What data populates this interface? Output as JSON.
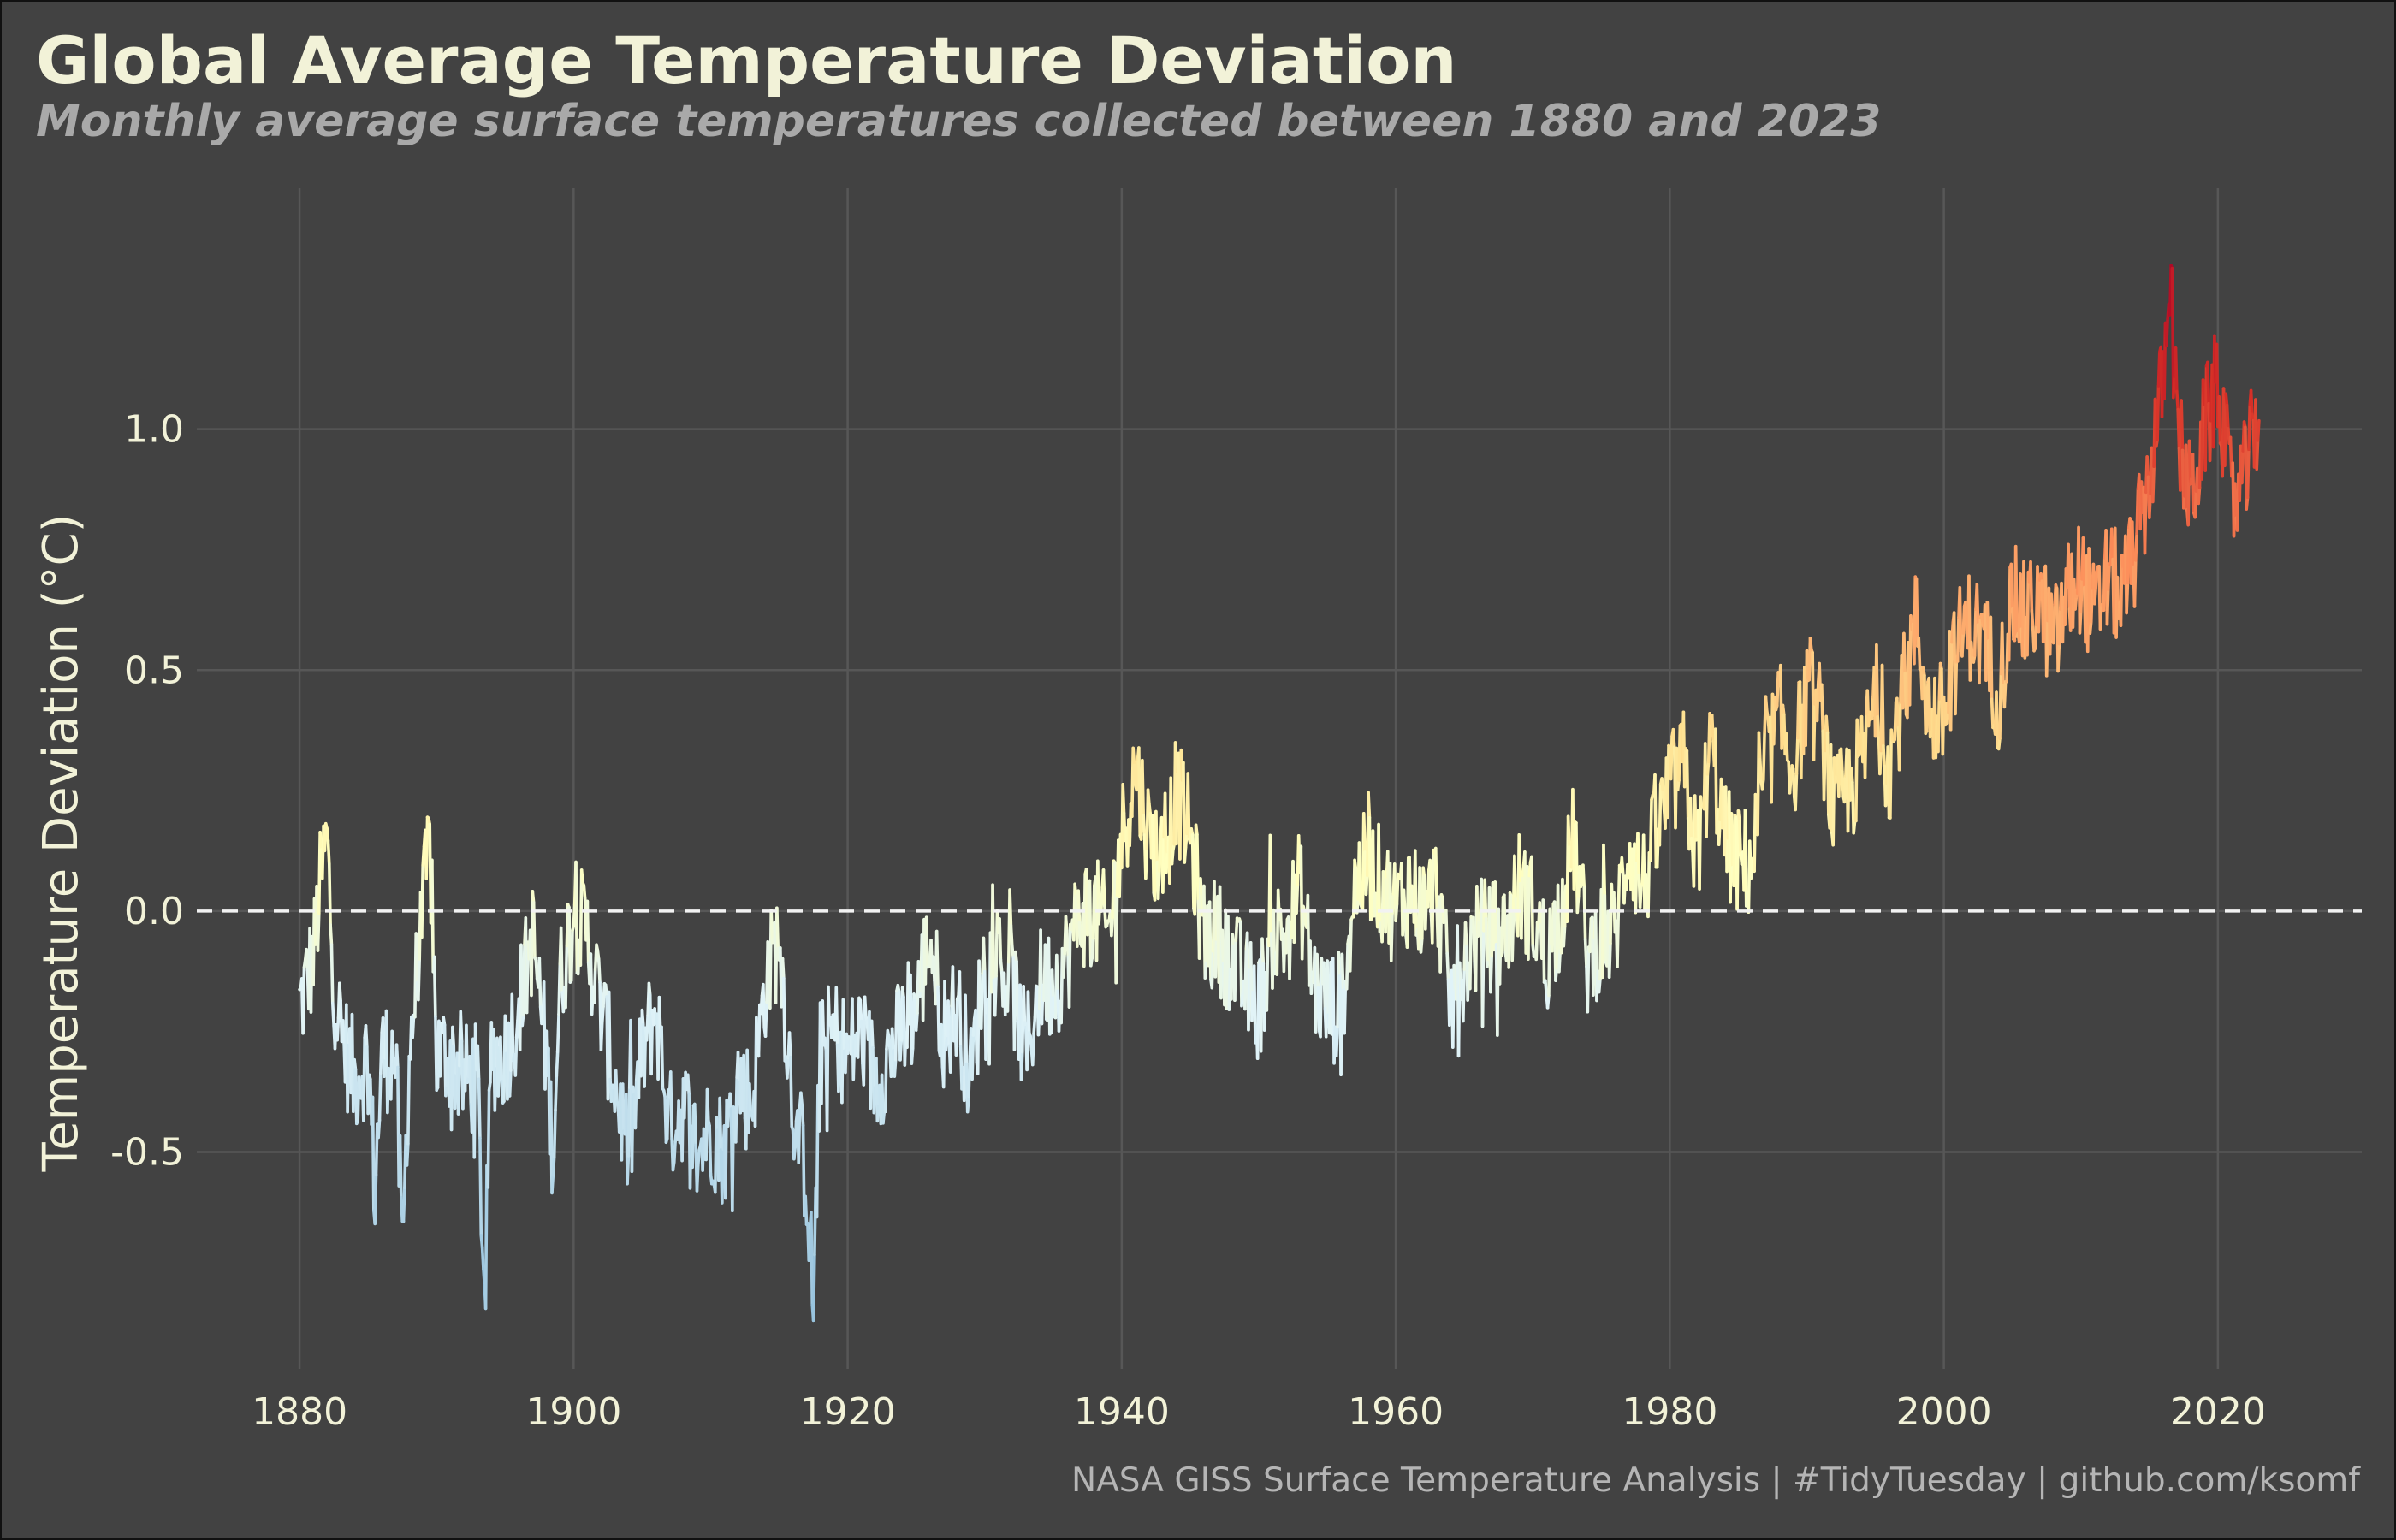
{
  "chart_data": {
    "type": "line",
    "title": "Global Average Temperature Deviation",
    "subtitle": "Monthly average surface temperatures collected between 1880 and 2023",
    "ylabel": "Temperature Deviation (°C)",
    "xlabel": "",
    "caption": "NASA GISS Surface Temperature Analysis | #TidyTuesday | github.com/ksomf",
    "xlim": [
      1872.5,
      2030.5
    ],
    "ylim": [
      -0.95,
      1.5
    ],
    "x_ticks": [
      1880,
      1900,
      1920,
      1940,
      1960,
      1980,
      2000,
      2020
    ],
    "x_tick_labels": [
      "1880",
      "1900",
      "1920",
      "1940",
      "1960",
      "1980",
      "2000",
      "2020"
    ],
    "y_ticks": [
      -0.5,
      0.0,
      0.5,
      1.0
    ],
    "y_tick_labels": [
      "-0.5",
      "0.0",
      "0.5",
      "1.0"
    ],
    "grid": true,
    "reference_line": {
      "y": 0.0,
      "style": "dashed",
      "color": "#f2f2f2"
    },
    "color_scale": {
      "low": "#91bfdb",
      "mid_low": "#e0f3f8",
      "mid": "#ffffbf",
      "mid_high": "#fee090",
      "high_mid": "#fc8d59",
      "high": "#d73027",
      "top": "#a50026"
    },
    "series": [
      {
        "x": [
          1880.0,
          1881.0,
          1881.5,
          1882.0,
          1882.5,
          1883.0,
          1884.0,
          1885.0,
          1885.5,
          1886.0,
          1887.0,
          1887.5,
          1888.0,
          1889.0,
          1889.5,
          1890.0,
          1891.0,
          1892.0,
          1893.0,
          1893.5,
          1894.0,
          1895.0,
          1896.0,
          1897.0,
          1898.0,
          1898.5,
          1899.0,
          1900.0,
          1901.0,
          1902.0,
          1903.0,
          1904.0,
          1905.0,
          1906.0,
          1907.0,
          1908.0,
          1909.0,
          1910.0,
          1911.0,
          1912.0,
          1913.0,
          1914.0,
          1915.0,
          1916.0,
          1917.0,
          1917.5,
          1918.0,
          1919.0,
          1920.0,
          1921.0,
          1922.0,
          1923.0,
          1924.0,
          1925.0,
          1926.0,
          1927.0,
          1928.0,
          1929.0,
          1930.0,
          1931.0,
          1932.0,
          1933.0,
          1934.0,
          1935.0,
          1936.0,
          1937.0,
          1938.0,
          1939.0,
          1940.0,
          1941.0,
          1942.0,
          1943.0,
          1944.0,
          1945.0,
          1946.0,
          1947.0,
          1948.0,
          1949.0,
          1950.0,
          1951.0,
          1952.0,
          1953.0,
          1954.0,
          1955.0,
          1956.0,
          1957.0,
          1958.0,
          1959.0,
          1960.0,
          1961.0,
          1962.0,
          1963.0,
          1964.0,
          1965.0,
          1966.0,
          1967.0,
          1968.0,
          1969.0,
          1970.0,
          1971.0,
          1972.0,
          1973.0,
          1974.0,
          1975.0,
          1976.0,
          1977.0,
          1978.0,
          1979.0,
          1980.0,
          1981.0,
          1982.0,
          1983.0,
          1984.0,
          1985.0,
          1986.0,
          1987.0,
          1988.0,
          1989.0,
          1990.0,
          1991.0,
          1992.0,
          1993.0,
          1994.0,
          1995.0,
          1996.0,
          1997.0,
          1998.0,
          1999.0,
          2000.0,
          2001.0,
          2002.0,
          2003.0,
          2004.0,
          2005.0,
          2006.0,
          2007.0,
          2008.0,
          2009.0,
          2010.0,
          2011.0,
          2012.0,
          2013.0,
          2014.0,
          2015.0,
          2016.0,
          2016.5,
          2017.0,
          2018.0,
          2019.0,
          2020.0,
          2021.0,
          2022.0,
          2023.0
        ],
        "y": [
          -0.2,
          -0.1,
          0.05,
          0.15,
          -0.15,
          -0.25,
          -0.35,
          -0.3,
          -0.58,
          -0.3,
          -0.3,
          -0.72,
          -0.3,
          0.0,
          0.15,
          -0.3,
          -0.3,
          -0.35,
          -0.35,
          -0.82,
          -0.3,
          -0.3,
          -0.2,
          -0.05,
          -0.3,
          -0.5,
          -0.15,
          0.0,
          -0.05,
          -0.2,
          -0.35,
          -0.5,
          -0.3,
          -0.2,
          -0.45,
          -0.4,
          -0.5,
          -0.45,
          -0.5,
          -0.35,
          -0.4,
          -0.15,
          -0.05,
          -0.4,
          -0.55,
          -0.82,
          -0.3,
          -0.25,
          -0.3,
          -0.25,
          -0.35,
          -0.3,
          -0.25,
          -0.2,
          -0.05,
          -0.25,
          -0.2,
          -0.35,
          -0.1,
          -0.1,
          -0.15,
          -0.3,
          -0.15,
          -0.15,
          -0.1,
          0.0,
          0.0,
          -0.05,
          0.15,
          0.3,
          0.15,
          0.1,
          0.25,
          0.15,
          -0.05,
          -0.05,
          -0.1,
          -0.15,
          -0.2,
          -0.05,
          -0.05,
          0.05,
          -0.15,
          -0.2,
          -0.2,
          0.05,
          0.1,
          0.05,
          0.0,
          0.05,
          0.0,
          0.05,
          -0.2,
          -0.1,
          -0.05,
          -0.05,
          -0.05,
          0.05,
          0.0,
          -0.1,
          0.0,
          0.15,
          -0.1,
          -0.05,
          -0.05,
          0.15,
          0.05,
          0.15,
          0.25,
          0.3,
          0.1,
          0.35,
          0.15,
          0.1,
          0.1,
          0.3,
          0.4,
          0.3,
          0.45,
          0.4,
          0.2,
          0.25,
          0.3,
          0.45,
          0.3,
          0.45,
          0.6,
          0.4,
          0.4,
          0.55,
          0.6,
          0.55,
          0.45,
          0.65,
          0.6,
          0.65,
          0.55,
          0.65,
          0.7,
          0.6,
          0.7,
          0.65,
          0.75,
          0.9,
          1.1,
          1.35,
          1.0,
          0.85,
          1.0,
          1.1,
          0.85,
          0.9,
          1.05
        ]
      }
    ]
  }
}
